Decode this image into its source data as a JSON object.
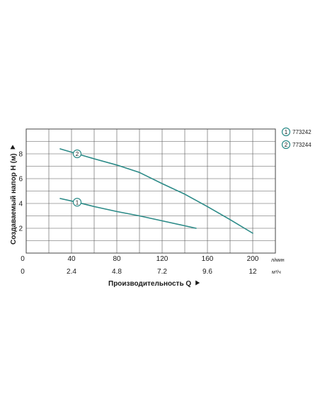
{
  "chart_data": {
    "type": "line",
    "xlabel": "Производительность Q",
    "ylabel": "Создаваемый напор Н (м)",
    "x_unit": "л/мин",
    "x2_unit": "м³/ч",
    "xlim": [
      0,
      220
    ],
    "ylim": [
      0,
      10
    ],
    "x_ticks": [
      0,
      40,
      80,
      120,
      160,
      200
    ],
    "x2_ticks": [
      "0",
      "2.4",
      "4.8",
      "7.2",
      "9.6",
      "12"
    ],
    "y_ticks": [
      2,
      4,
      6,
      8
    ],
    "grid": true,
    "legend_position": "right",
    "series": [
      {
        "name": "773242",
        "marker": "1",
        "color": "#2b8a87",
        "x": [
          30,
          45,
          60,
          80,
          100,
          120,
          140,
          150
        ],
        "y": [
          4.4,
          4.1,
          3.75,
          3.35,
          3.0,
          2.6,
          2.2,
          2.0
        ]
      },
      {
        "name": "773244",
        "marker": "2",
        "color": "#2b8a87",
        "x": [
          30,
          45,
          60,
          80,
          100,
          120,
          140,
          160,
          180,
          200
        ],
        "y": [
          8.4,
          8.0,
          7.6,
          7.1,
          6.5,
          5.6,
          4.75,
          3.75,
          2.7,
          1.6
        ]
      }
    ]
  }
}
